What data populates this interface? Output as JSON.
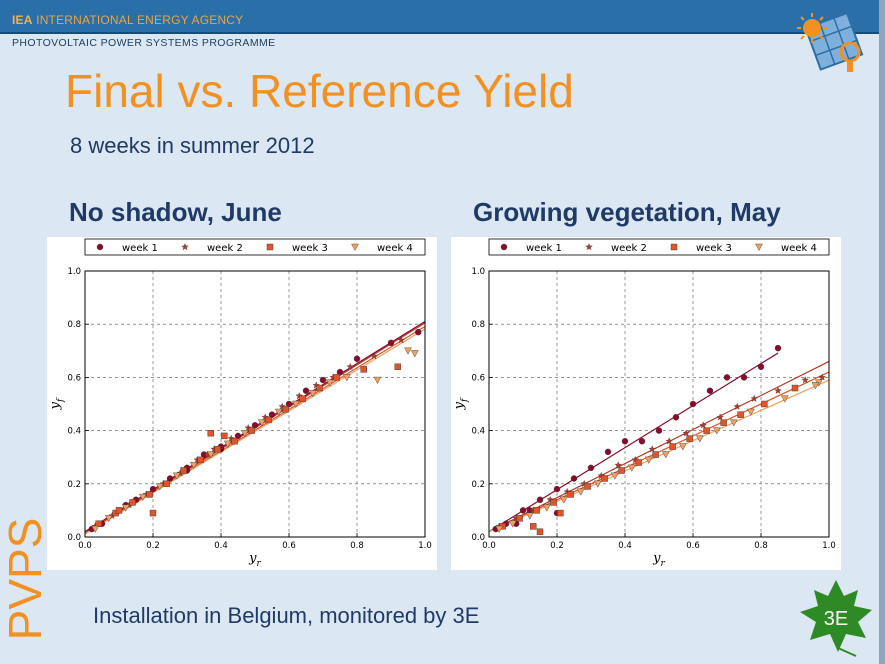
{
  "header": {
    "org_abbr": "IEA",
    "org_name": "INTERNATIONAL ENERGY AGENCY",
    "programme": "PHOTOVOLTAIC POWER SYSTEMS PROGRAMME"
  },
  "slide": {
    "title": "Final vs. Reference Yield",
    "subtitle": "8 weeks in summer 2012",
    "left_panel_title": "No shadow, June",
    "right_panel_title": "Growing vegetation, May",
    "side_label": "PVPS",
    "footer": "Installation in Belgium, monitored by 3E",
    "logo_text": "3E"
  },
  "colors": {
    "accent_orange": "#f39020",
    "title_navy": "#1f3a66",
    "bar_blue": "#2a6fa8",
    "leaf_green": "#2e8a24",
    "week1": "#8b0a2a",
    "week2": "#b33a2a",
    "week3": "#e0542a",
    "week4": "#f0a060"
  },
  "icons": {
    "top_logo": "solar-panel-sun-logo-icon",
    "bottom_logo": "3e-leaf-logo-icon"
  },
  "chart_data": [
    {
      "type": "scatter",
      "xlabel": "y_r",
      "ylabel": "y_f",
      "xlim": [
        0.0,
        1.0
      ],
      "ylim": [
        0.0,
        1.0
      ],
      "xticks": [
        "0.0",
        "0.2",
        "0.4",
        "0.6",
        "0.8",
        "1.0"
      ],
      "yticks": [
        "0.0",
        "0.2",
        "0.4",
        "0.6",
        "0.8",
        "1.0"
      ],
      "grid": true,
      "legend_position": "top",
      "series": [
        {
          "name": "week 1",
          "marker": "circle",
          "color": "#8b0a2a",
          "fit": {
            "slope": 0.79,
            "intercept": 0.02,
            "x_end": 1.0
          }
        },
        {
          "name": "week 2",
          "marker": "star",
          "color": "#b33a2a",
          "fit": {
            "slope": 0.79,
            "intercept": 0.015,
            "x_end": 1.0
          }
        },
        {
          "name": "week 3",
          "marker": "square",
          "color": "#e0542a",
          "fit": {
            "slope": 0.78,
            "intercept": 0.012,
            "x_end": 1.0
          }
        },
        {
          "name": "week 4",
          "marker": "triangle-down",
          "color": "#f0a060",
          "fit": {
            "slope": 0.77,
            "intercept": 0.012,
            "x_end": 1.0
          }
        }
      ],
      "points": {
        "week 1": [
          [
            0.02,
            0.03
          ],
          [
            0.05,
            0.05
          ],
          [
            0.1,
            0.1
          ],
          [
            0.15,
            0.14
          ],
          [
            0.2,
            0.18
          ],
          [
            0.25,
            0.22
          ],
          [
            0.3,
            0.26
          ],
          [
            0.35,
            0.31
          ],
          [
            0.4,
            0.34
          ],
          [
            0.45,
            0.38
          ],
          [
            0.5,
            0.42
          ],
          [
            0.55,
            0.46
          ],
          [
            0.6,
            0.5
          ],
          [
            0.65,
            0.55
          ],
          [
            0.7,
            0.59
          ],
          [
            0.75,
            0.62
          ],
          [
            0.8,
            0.67
          ],
          [
            0.9,
            0.73
          ],
          [
            0.98,
            0.77
          ],
          [
            0.3,
            0.25
          ],
          [
            0.4,
            0.33
          ],
          [
            0.12,
            0.12
          ]
        ],
        "week 2": [
          [
            0.03,
            0.04
          ],
          [
            0.08,
            0.08
          ],
          [
            0.13,
            0.12
          ],
          [
            0.18,
            0.16
          ],
          [
            0.23,
            0.2
          ],
          [
            0.28,
            0.24
          ],
          [
            0.33,
            0.29
          ],
          [
            0.38,
            0.33
          ],
          [
            0.43,
            0.37
          ],
          [
            0.48,
            0.41
          ],
          [
            0.53,
            0.45
          ],
          [
            0.58,
            0.49
          ],
          [
            0.63,
            0.53
          ],
          [
            0.68,
            0.57
          ],
          [
            0.73,
            0.6
          ],
          [
            0.78,
            0.64
          ],
          [
            0.85,
            0.68
          ],
          [
            0.93,
            0.74
          ],
          [
            0.36,
            0.31
          ]
        ],
        "week 3": [
          [
            0.04,
            0.05
          ],
          [
            0.09,
            0.09
          ],
          [
            0.14,
            0.13
          ],
          [
            0.19,
            0.16
          ],
          [
            0.24,
            0.2
          ],
          [
            0.29,
            0.25
          ],
          [
            0.34,
            0.29
          ],
          [
            0.39,
            0.33
          ],
          [
            0.44,
            0.36
          ],
          [
            0.49,
            0.4
          ],
          [
            0.54,
            0.44
          ],
          [
            0.59,
            0.48
          ],
          [
            0.64,
            0.52
          ],
          [
            0.69,
            0.56
          ],
          [
            0.74,
            0.6
          ],
          [
            0.82,
            0.63
          ],
          [
            0.92,
            0.64
          ],
          [
            0.2,
            0.09
          ],
          [
            0.1,
            0.1
          ],
          [
            0.37,
            0.39
          ],
          [
            0.41,
            0.38
          ]
        ],
        "week 4": [
          [
            0.03,
            0.03
          ],
          [
            0.07,
            0.07
          ],
          [
            0.12,
            0.11
          ],
          [
            0.17,
            0.15
          ],
          [
            0.22,
            0.19
          ],
          [
            0.27,
            0.23
          ],
          [
            0.32,
            0.27
          ],
          [
            0.37,
            0.31
          ],
          [
            0.42,
            0.35
          ],
          [
            0.47,
            0.39
          ],
          [
            0.52,
            0.43
          ],
          [
            0.57,
            0.47
          ],
          [
            0.62,
            0.5
          ],
          [
            0.67,
            0.54
          ],
          [
            0.72,
            0.58
          ],
          [
            0.77,
            0.6
          ],
          [
            0.86,
            0.59
          ],
          [
            0.95,
            0.7
          ],
          [
            0.97,
            0.69
          ]
        ]
      }
    },
    {
      "type": "scatter",
      "xlabel": "y_r",
      "ylabel": "y_f",
      "xlim": [
        0.0,
        1.0
      ],
      "ylim": [
        0.0,
        1.0
      ],
      "xticks": [
        "0.0",
        "0.2",
        "0.4",
        "0.6",
        "0.8",
        "1.0"
      ],
      "yticks": [
        "0.0",
        "0.2",
        "0.4",
        "0.6",
        "0.8",
        "1.0"
      ],
      "grid": true,
      "legend_position": "top",
      "series": [
        {
          "name": "week 1",
          "marker": "circle",
          "color": "#8b0a2a",
          "fit": {
            "slope": 0.79,
            "intercept": 0.02,
            "x_end": 0.85
          }
        },
        {
          "name": "week 2",
          "marker": "star",
          "color": "#b33a2a",
          "fit": {
            "slope": 0.64,
            "intercept": 0.02,
            "x_end": 1.0
          }
        },
        {
          "name": "week 3",
          "marker": "square",
          "color": "#e0542a",
          "fit": {
            "slope": 0.6,
            "intercept": 0.02,
            "x_end": 1.0
          }
        },
        {
          "name": "week 4",
          "marker": "triangle-down",
          "color": "#f0a060",
          "fit": {
            "slope": 0.57,
            "intercept": 0.02,
            "x_end": 1.0
          }
        }
      ],
      "points": {
        "week 1": [
          [
            0.02,
            0.03
          ],
          [
            0.05,
            0.05
          ],
          [
            0.1,
            0.1
          ],
          [
            0.15,
            0.14
          ],
          [
            0.2,
            0.18
          ],
          [
            0.25,
            0.22
          ],
          [
            0.3,
            0.26
          ],
          [
            0.35,
            0.32
          ],
          [
            0.4,
            0.36
          ],
          [
            0.45,
            0.36
          ],
          [
            0.5,
            0.4
          ],
          [
            0.55,
            0.45
          ],
          [
            0.6,
            0.5
          ],
          [
            0.65,
            0.55
          ],
          [
            0.7,
            0.6
          ],
          [
            0.75,
            0.6
          ],
          [
            0.8,
            0.64
          ],
          [
            0.85,
            0.71
          ],
          [
            0.2,
            0.09
          ],
          [
            0.12,
            0.1
          ],
          [
            0.08,
            0.05
          ]
        ],
        "week 2": [
          [
            0.03,
            0.04
          ],
          [
            0.08,
            0.07
          ],
          [
            0.13,
            0.1
          ],
          [
            0.18,
            0.14
          ],
          [
            0.23,
            0.17
          ],
          [
            0.28,
            0.2
          ],
          [
            0.33,
            0.23
          ],
          [
            0.38,
            0.27
          ],
          [
            0.43,
            0.29
          ],
          [
            0.48,
            0.33
          ],
          [
            0.53,
            0.36
          ],
          [
            0.58,
            0.39
          ],
          [
            0.63,
            0.42
          ],
          [
            0.68,
            0.45
          ],
          [
            0.73,
            0.49
          ],
          [
            0.78,
            0.52
          ],
          [
            0.85,
            0.55
          ],
          [
            0.93,
            0.59
          ],
          [
            0.98,
            0.6
          ]
        ],
        "week 3": [
          [
            0.04,
            0.04
          ],
          [
            0.09,
            0.07
          ],
          [
            0.14,
            0.1
          ],
          [
            0.19,
            0.13
          ],
          [
            0.24,
            0.16
          ],
          [
            0.29,
            0.19
          ],
          [
            0.34,
            0.22
          ],
          [
            0.39,
            0.25
          ],
          [
            0.44,
            0.28
          ],
          [
            0.49,
            0.31
          ],
          [
            0.54,
            0.34
          ],
          [
            0.59,
            0.37
          ],
          [
            0.64,
            0.4
          ],
          [
            0.69,
            0.43
          ],
          [
            0.74,
            0.46
          ],
          [
            0.81,
            0.5
          ],
          [
            0.9,
            0.56
          ],
          [
            0.13,
            0.04
          ],
          [
            0.21,
            0.09
          ],
          [
            0.15,
            0.02
          ]
        ],
        "week 4": [
          [
            0.03,
            0.03
          ],
          [
            0.07,
            0.05
          ],
          [
            0.12,
            0.08
          ],
          [
            0.17,
            0.11
          ],
          [
            0.22,
            0.14
          ],
          [
            0.27,
            0.17
          ],
          [
            0.32,
            0.2
          ],
          [
            0.37,
            0.23
          ],
          [
            0.42,
            0.26
          ],
          [
            0.47,
            0.29
          ],
          [
            0.52,
            0.31
          ],
          [
            0.57,
            0.34
          ],
          [
            0.62,
            0.37
          ],
          [
            0.67,
            0.4
          ],
          [
            0.72,
            0.43
          ],
          [
            0.77,
            0.47
          ],
          [
            0.87,
            0.52
          ],
          [
            0.97,
            0.58
          ],
          [
            0.96,
            0.57
          ]
        ]
      }
    }
  ]
}
